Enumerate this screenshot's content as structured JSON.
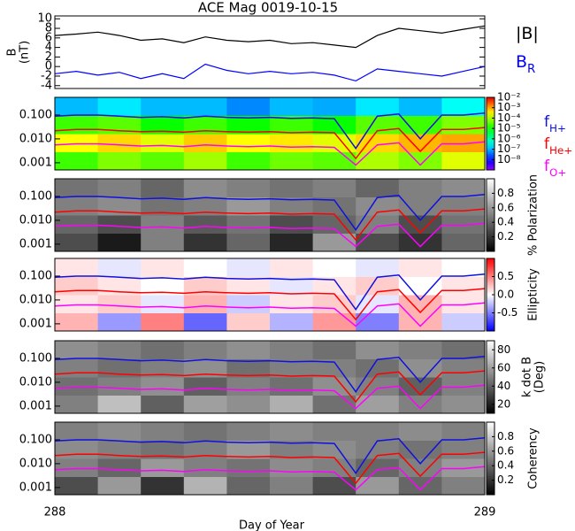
{
  "chart_data": [
    {
      "type": "line",
      "title": "ACE Mag 0019-10-15",
      "ylabel": [
        "B",
        "(nT)"
      ],
      "x": [
        288,
        288.05,
        288.1,
        288.15,
        288.2,
        288.25,
        288.3,
        288.35,
        288.4,
        288.45,
        288.5,
        288.55,
        288.6,
        288.65,
        288.7,
        288.75,
        288.8,
        288.85,
        288.9,
        288.95,
        289
      ],
      "xlim": [
        288,
        289
      ],
      "ylim": [
        -4.6,
        10.6
      ],
      "yticks": [
        -4,
        -2,
        0,
        2,
        4,
        6,
        8,
        10
      ],
      "series": [
        {
          "name": "|B|",
          "color": "#000000",
          "values": [
            6.5,
            6.8,
            7.2,
            6.5,
            5.5,
            5.8,
            5.0,
            6.2,
            5.5,
            5.2,
            5.5,
            4.8,
            5.0,
            4.5,
            4.0,
            6.5,
            8.0,
            7.5,
            7.0,
            7.8,
            8.5
          ]
        },
        {
          "name": "B",
          "subscript": "R",
          "color": "#0000ff",
          "values": [
            -1.5,
            -1.0,
            -1.8,
            -1.2,
            -2.5,
            -1.5,
            -2.5,
            0.5,
            -0.8,
            -1.5,
            -1.0,
            -1.5,
            -1.2,
            -1.8,
            -3.0,
            -0.5,
            -1.0,
            -1.5,
            -2.0,
            -1.0,
            0.0
          ]
        }
      ]
    },
    {
      "type": "spectrogram",
      "xlim": [
        288,
        289
      ],
      "ylim": [
        0.0005,
        0.55
      ],
      "ylog": true,
      "yticks": [
        {
          "value": 0.001,
          "label": "0.001"
        },
        {
          "value": 0.01,
          "label": "0.010"
        },
        {
          "value": 0.1,
          "label": "0.100"
        }
      ],
      "colormap": "rainbow",
      "zlim": [
        1e-09,
        0.01
      ],
      "zlog": true,
      "zticks": [
        {
          "value": 0.01,
          "label": "10⁻²"
        },
        {
          "value": 0.001,
          "label": "10⁻³"
        },
        {
          "value": 0.0001,
          "label": "10⁻⁴"
        },
        {
          "value": 1e-05,
          "label": "10⁻⁵"
        },
        {
          "value": 1e-06,
          "label": "10⁻⁶"
        },
        {
          "value": 1e-07,
          "label": "10⁻⁷"
        },
        {
          "value": 1e-08,
          "label": "10⁻⁸"
        }
      ],
      "z": [
        [
          2e-05,
          5e-05,
          3e-05,
          8e-05,
          2e-05,
          4e-05,
          3e-05,
          0.0001,
          5e-05,
          0.0002
        ],
        [
          0.0003,
          0.0005,
          0.0002,
          0.0006,
          0.0003,
          0.0004,
          0.0002,
          0.0005,
          0.0008,
          0.001
        ],
        [
          2e-05,
          3e-05,
          1e-05,
          2e-05,
          1e-05,
          2e-05,
          1e-05,
          3e-05,
          2e-05,
          5e-05
        ],
        [
          1e-07,
          2e-07,
          1e-07,
          1e-07,
          5e-08,
          1e-07,
          8e-08,
          2e-07,
          1e-07,
          3e-07
        ]
      ],
      "series": [
        {
          "name": "f",
          "subscript": "H+",
          "color": "#1010e0",
          "values": [
            0.09,
            0.1,
            0.1,
            0.09,
            0.08,
            0.085,
            0.075,
            0.09,
            0.08,
            0.075,
            0.08,
            0.072,
            0.075,
            0.07,
            0.004,
            0.09,
            0.11,
            0.01,
            0.1,
            0.1,
            0.12
          ]
        },
        {
          "name": "f",
          "subscript": "He+",
          "color": "#ff0000",
          "values": [
            0.022,
            0.025,
            0.025,
            0.022,
            0.02,
            0.021,
            0.019,
            0.022,
            0.02,
            0.019,
            0.02,
            0.018,
            0.019,
            0.018,
            0.0015,
            0.022,
            0.027,
            0.003,
            0.025,
            0.025,
            0.03
          ]
        },
        {
          "name": "f",
          "subscript": "O+",
          "color": "#ff00ff",
          "values": [
            0.0056,
            0.0062,
            0.0062,
            0.0056,
            0.005,
            0.0053,
            0.0047,
            0.0056,
            0.005,
            0.0047,
            0.005,
            0.0045,
            0.0047,
            0.0044,
            0.0008,
            0.0056,
            0.0068,
            0.0008,
            0.0062,
            0.0062,
            0.0075
          ]
        }
      ]
    },
    {
      "type": "spectrogram",
      "xlim": [
        288,
        289
      ],
      "ylim": [
        0.0005,
        0.55
      ],
      "ylog": true,
      "yticks": [
        {
          "value": 0.001,
          "label": "0.001"
        },
        {
          "value": 0.01,
          "label": "0.010"
        },
        {
          "value": 0.1,
          "label": "0.100"
        }
      ],
      "colormap": "gray",
      "zlim": [
        0,
        1
      ],
      "zticks": [
        0.2,
        0.4,
        0.6,
        0.8
      ],
      "colorbar_label": [
        "% Polarization"
      ],
      "z": [
        [
          0.3,
          0.1,
          0.5,
          0.2,
          0.4,
          0.15,
          0.6,
          0.3,
          0.2,
          0.4
        ],
        [
          0.4,
          0.3,
          0.5,
          0.35,
          0.45,
          0.3,
          0.4,
          0.5,
          0.3,
          0.45
        ],
        [
          0.5,
          0.55,
          0.45,
          0.5,
          0.6,
          0.5,
          0.45,
          0.55,
          0.5,
          0.5
        ],
        [
          0.45,
          0.5,
          0.4,
          0.55,
          0.5,
          0.45,
          0.5,
          0.4,
          0.5,
          0.55
        ]
      ]
    },
    {
      "type": "spectrogram",
      "xlim": [
        288,
        289
      ],
      "ylim": [
        0.0005,
        0.55
      ],
      "ylog": true,
      "yticks": [
        {
          "value": 0.001,
          "label": "0.001"
        },
        {
          "value": 0.01,
          "label": "0.010"
        },
        {
          "value": 0.1,
          "label": "0.100"
        }
      ],
      "colormap": "bwr",
      "zlim": [
        -1,
        1
      ],
      "zticks": [
        -0.5,
        {
          "value": 0,
          "label": "0.0"
        },
        0.5
      ],
      "colorbar_label": [
        "Ellipticity"
      ],
      "z": [
        [
          0.3,
          -0.4,
          0.5,
          -0.6,
          0.2,
          -0.3,
          0.4,
          -0.5,
          0.3,
          -0.2
        ],
        [
          0.1,
          0.2,
          -0.1,
          0.3,
          -0.2,
          0.1,
          0.2,
          -0.1,
          0.3,
          0.1
        ],
        [
          0.2,
          0.1,
          0.0,
          0.2,
          0.1,
          -0.1,
          0.1,
          0.2,
          0.0,
          0.1
        ],
        [
          0.1,
          -0.1,
          0.1,
          0.0,
          -0.1,
          0.1,
          0.0,
          -0.1,
          0.1,
          0.0
        ]
      ]
    },
    {
      "type": "spectrogram",
      "xlim": [
        288,
        289
      ],
      "ylim": [
        0.0005,
        0.55
      ],
      "ylog": true,
      "yticks": [
        {
          "value": 0.001,
          "label": "0.001"
        },
        {
          "value": 0.01,
          "label": "0.010"
        },
        {
          "value": 0.1,
          "label": "0.100"
        }
      ],
      "colormap": "gray",
      "zlim": [
        10,
        90
      ],
      "zticks": [
        20,
        40,
        60,
        80
      ],
      "colorbar_label": [
        "k dot B",
        "(Deg)"
      ],
      "z": [
        [
          50,
          70,
          40,
          60,
          55,
          65,
          45,
          60,
          50,
          55
        ],
        [
          45,
          50,
          55,
          40,
          50,
          45,
          55,
          50,
          40,
          50
        ],
        [
          50,
          45,
          50,
          55,
          45,
          50,
          50,
          45,
          55,
          50
        ],
        [
          55,
          50,
          45,
          50,
          55,
          50,
          45,
          55,
          50,
          45
        ]
      ]
    },
    {
      "type": "spectrogram",
      "xlim": [
        288,
        289
      ],
      "ylim": [
        0.0005,
        0.55
      ],
      "ylog": true,
      "yticks": [
        {
          "value": 0.001,
          "label": "0.001"
        },
        {
          "value": 0.01,
          "label": "0.010"
        },
        {
          "value": 0.1,
          "label": "0.100"
        }
      ],
      "colormap": "gray",
      "zlim": [
        0,
        1
      ],
      "zticks": [
        0.2,
        0.4,
        0.6,
        0.8
      ],
      "colorbar_label": [
        "Coherency"
      ],
      "xticks": [
        288,
        289
      ],
      "xlabel": "Day of Year",
      "z": [
        [
          0.3,
          0.6,
          0.2,
          0.7,
          0.4,
          0.5,
          0.3,
          0.6,
          0.4,
          0.5
        ],
        [
          0.5,
          0.4,
          0.6,
          0.5,
          0.45,
          0.55,
          0.5,
          0.4,
          0.5,
          0.6
        ],
        [
          0.55,
          0.5,
          0.45,
          0.5,
          0.6,
          0.5,
          0.55,
          0.5,
          0.45,
          0.5
        ],
        [
          0.5,
          0.55,
          0.5,
          0.45,
          0.5,
          0.55,
          0.5,
          0.5,
          0.55,
          0.5
        ]
      ]
    }
  ]
}
